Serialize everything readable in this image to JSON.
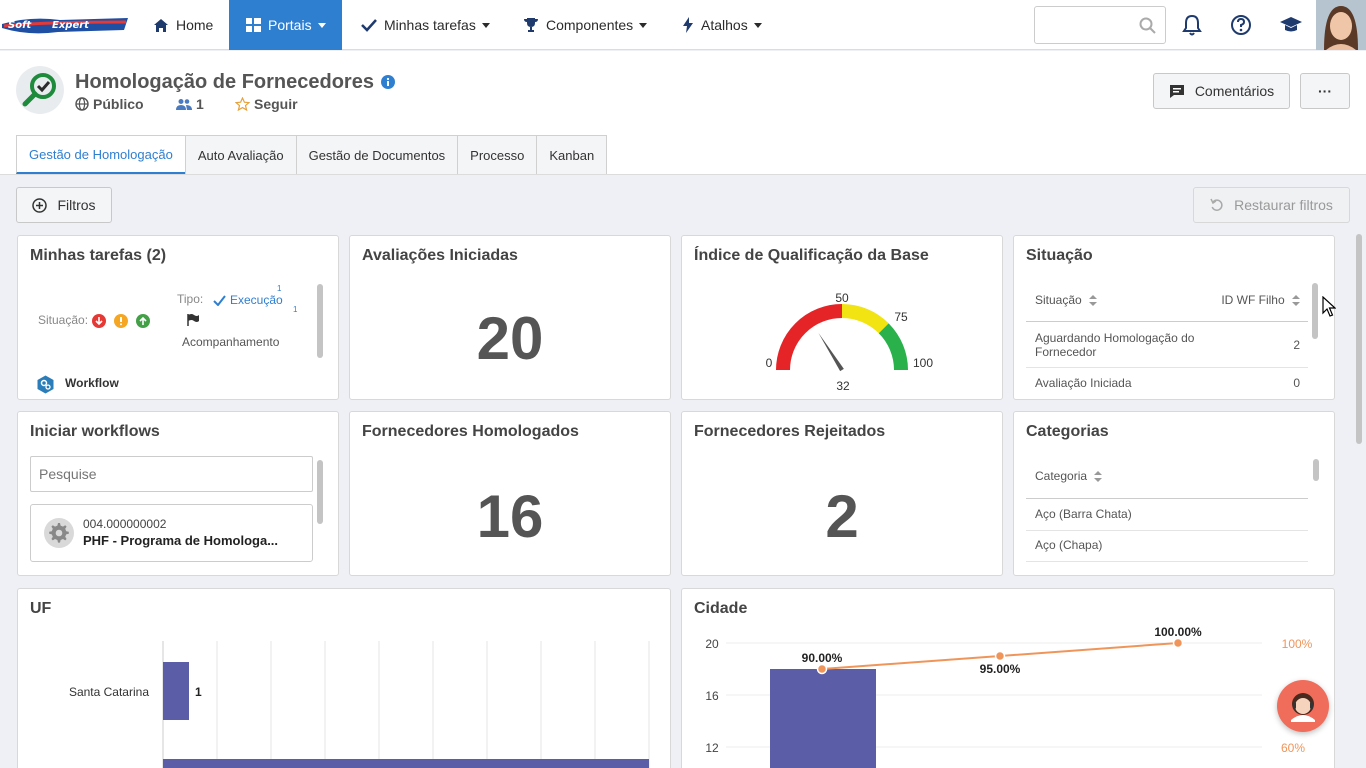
{
  "nav": {
    "home": "Home",
    "portais": "Portais",
    "tarefas": "Minhas tarefas",
    "componentes": "Componentes",
    "atalhos": "Atalhos"
  },
  "header": {
    "title": "Homologação de Fornecedores",
    "visibility": "Público",
    "members": "1",
    "follow": "Seguir",
    "comments_label": "Comentários",
    "more_label": "···"
  },
  "tabs": [
    "Gestão de Homologação",
    "Auto Avaliação",
    "Gestão de Documentos",
    "Processo",
    "Kanban"
  ],
  "toolbar": {
    "filters": "Filtros",
    "restore": "Restaurar filtros"
  },
  "minhas_tarefas": {
    "title": "Minhas tarefas (2)",
    "situacao": "Situação:",
    "tipo": "Tipo:",
    "execucao": "Execução",
    "execucao_count": "1",
    "acompanhamento_count": "1",
    "acompanhamento": "Acompanhamento",
    "workflow": "Workflow"
  },
  "avaliacoes": {
    "title": "Avaliações Iniciadas",
    "value": "20"
  },
  "indice": {
    "title": "Índice de Qualificação da Base",
    "min": "0",
    "mid": "50",
    "q3": "75",
    "max": "100",
    "value": "32"
  },
  "situacao": {
    "title": "Situação",
    "col1": "Situação",
    "col2": "ID WF Filho",
    "rows": [
      {
        "name1": "Aguardando Homologação do",
        "name2": "Fornecedor",
        "value": "2"
      },
      {
        "name1": "Avaliação Iniciada",
        "name2": "",
        "value": "0"
      }
    ]
  },
  "iniciar": {
    "title": "Iniciar workflows",
    "placeholder": "Pesquise",
    "item_code": "004.000000002",
    "item_name": "PHF - Programa de Homologa..."
  },
  "homologados": {
    "title": "Fornecedores Homologados",
    "value": "16"
  },
  "rejeitados": {
    "title": "Fornecedores Rejeitados",
    "value": "2"
  },
  "categorias": {
    "title": "Categorias",
    "col": "Categoria",
    "rows": [
      "Aço (Barra Chata)",
      "Aço (Chapa)"
    ]
  },
  "uf": {
    "title": "UF",
    "label": "Santa Catarina",
    "value": "1"
  },
  "cidade": {
    "title": "Cidade"
  },
  "colors": {
    "accent": "#2f7fd1",
    "bar": "#5b5ea6",
    "line": "#f0955a"
  },
  "chart_data": [
    {
      "type": "bar",
      "orientation": "horizontal",
      "title": "UF",
      "categories": [
        "Santa Catarina"
      ],
      "values": [
        1
      ]
    },
    {
      "type": "bar",
      "title": "Cidade",
      "y_ticks": [
        "20",
        "16",
        "12"
      ],
      "y2_ticks": [
        "100%",
        "60%"
      ],
      "ylim": [
        12,
        20
      ],
      "y2lim": [
        60,
        100
      ],
      "bars": [
        18
      ],
      "pareto": [
        90.0,
        95.0,
        100.0
      ],
      "pareto_labels": [
        "90.00%",
        "95.00%",
        "100.00%"
      ]
    }
  ]
}
